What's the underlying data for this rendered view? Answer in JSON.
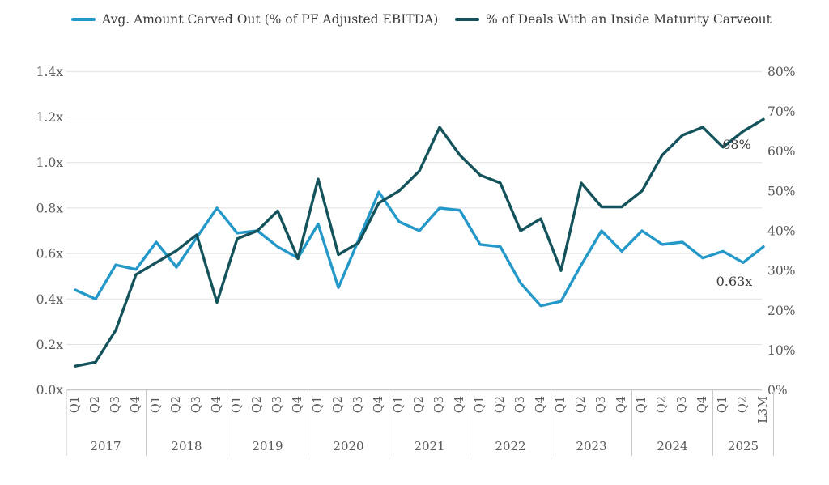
{
  "legend": [
    {
      "label": "Avg. Amount Carved Out (% of PF Adjusted EBITDA)",
      "color": "#2499c9"
    },
    {
      "label": "% of Deals With an Inside Maturity Carveout",
      "color": "#14535c"
    }
  ],
  "chart_data": {
    "type": "line",
    "categories": [
      "Q1",
      "Q2",
      "Q3",
      "Q4",
      "Q1",
      "Q2",
      "Q3",
      "Q4",
      "Q1",
      "Q2",
      "Q3",
      "Q4",
      "Q1",
      "Q2",
      "Q3",
      "Q4",
      "Q1",
      "Q2",
      "Q3",
      "Q4",
      "Q1",
      "Q2",
      "Q3",
      "Q4",
      "Q1",
      "Q2",
      "Q3",
      "Q4",
      "Q1",
      "Q2",
      "Q3",
      "Q4",
      "Q1",
      "Q2",
      "L3M"
    ],
    "year_groups": [
      {
        "label": "2017",
        "count": 4
      },
      {
        "label": "2018",
        "count": 4
      },
      {
        "label": "2019",
        "count": 4
      },
      {
        "label": "2020",
        "count": 4
      },
      {
        "label": "2021",
        "count": 4
      },
      {
        "label": "2022",
        "count": 4
      },
      {
        "label": "2023",
        "count": 4
      },
      {
        "label": "2024",
        "count": 4
      },
      {
        "label": "2025",
        "count": 3
      }
    ],
    "series": [
      {
        "name": "Avg. Amount Carved Out (% of PF Adjusted EBITDA)",
        "axis": "left",
        "color": "#2499c9",
        "values": [
          0.44,
          0.4,
          0.55,
          0.53,
          0.65,
          0.54,
          0.67,
          0.8,
          0.69,
          0.7,
          0.63,
          0.58,
          0.73,
          0.45,
          0.66,
          0.87,
          0.74,
          0.7,
          0.8,
          0.79,
          0.64,
          0.63,
          0.47,
          0.37,
          0.39,
          0.55,
          0.7,
          0.61,
          0.7,
          0.64,
          0.65,
          0.58,
          0.61,
          0.56,
          0.63
        ]
      },
      {
        "name": "% of Deals With an Inside Maturity Carveout",
        "axis": "right",
        "color": "#14535c",
        "values": [
          6,
          7,
          15,
          29,
          32,
          35,
          39,
          22,
          38,
          40,
          45,
          33,
          53,
          34,
          37,
          47,
          50,
          55,
          66,
          59,
          54,
          52,
          40,
          43,
          30,
          52,
          46,
          46,
          50,
          59,
          64,
          66,
          61,
          65,
          68
        ]
      }
    ],
    "left_axis": {
      "min": 0,
      "max": 1.4,
      "ticks": [
        "0.0x",
        "0.2x",
        "0.4x",
        "0.6x",
        "0.8x",
        "1.0x",
        "1.2x",
        "1.4x"
      ]
    },
    "right_axis": {
      "min": 0,
      "max": 80,
      "ticks": [
        "0%",
        "10%",
        "20%",
        "30%",
        "40%",
        "50%",
        "60%",
        "70%",
        "80%"
      ]
    },
    "grid": true,
    "legend_position": "top",
    "annotations": [
      {
        "text": "68%",
        "series": "% of Deals With an Inside Maturity Carveout",
        "point": "L3M 2025"
      },
      {
        "text": "0.63x",
        "series": "Avg. Amount Carved Out (% of PF Adjusted EBITDA)",
        "point": "L3M 2025"
      }
    ]
  }
}
